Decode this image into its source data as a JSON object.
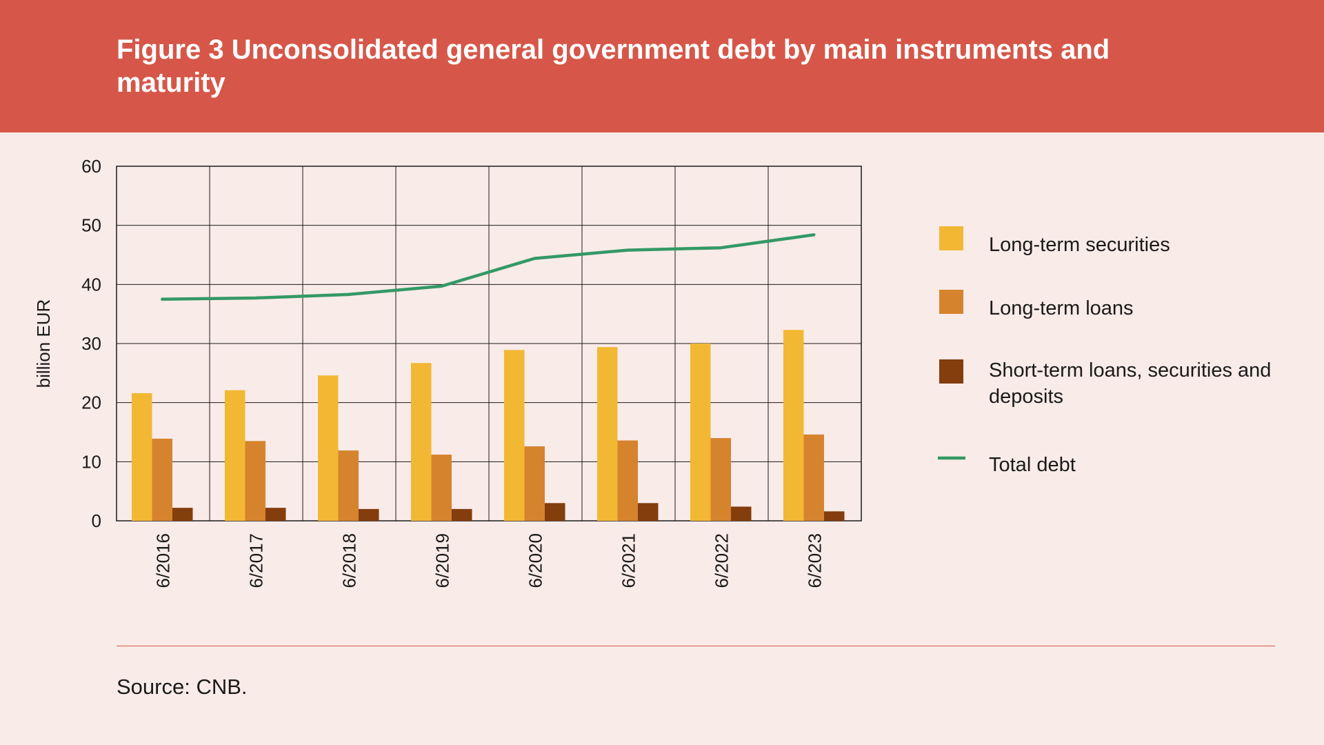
{
  "header": {
    "title": "Figure 3 Unconsolidated general government debt by main instruments and maturity"
  },
  "colors": {
    "header_bg": "#d65749",
    "page_bg": "#f9ebe8",
    "long_term_securities": "#f2b834",
    "long_term_loans": "#d6832e",
    "short_term": "#843d0c",
    "total_debt": "#339966"
  },
  "chart_data": {
    "type": "bar",
    "title": "",
    "xlabel": "",
    "ylabel": "billion EUR",
    "ylim": [
      0,
      60
    ],
    "yticks": [
      "0",
      "10",
      "20",
      "30",
      "40",
      "50",
      "60"
    ],
    "grid": true,
    "legend_position": "right",
    "categories": [
      "6/2016",
      "6/2017",
      "6/2018",
      "6/2019",
      "6/2020",
      "6/2021",
      "6/2022",
      "6/2023"
    ],
    "series": [
      {
        "name": "Long-term securities",
        "type": "bar",
        "values": [
          21.6,
          22.1,
          24.6,
          26.7,
          28.9,
          29.4,
          30.0,
          32.3
        ]
      },
      {
        "name": "Long-term loans",
        "type": "bar",
        "values": [
          13.9,
          13.5,
          11.9,
          11.2,
          12.6,
          13.6,
          14.0,
          14.6
        ]
      },
      {
        "name": "Short-term loans, securities and deposits",
        "legend_lines": [
          "Short-term loans, securities and",
          "deposits"
        ],
        "type": "bar",
        "values": [
          2.2,
          2.2,
          2.0,
          2.0,
          3.0,
          3.0,
          2.4,
          1.6
        ]
      },
      {
        "name": "Total debt",
        "type": "line",
        "values": [
          37.5,
          37.7,
          38.3,
          39.7,
          44.4,
          45.8,
          46.2,
          48.4
        ]
      }
    ]
  },
  "footer": {
    "source": "Source: CNB."
  }
}
